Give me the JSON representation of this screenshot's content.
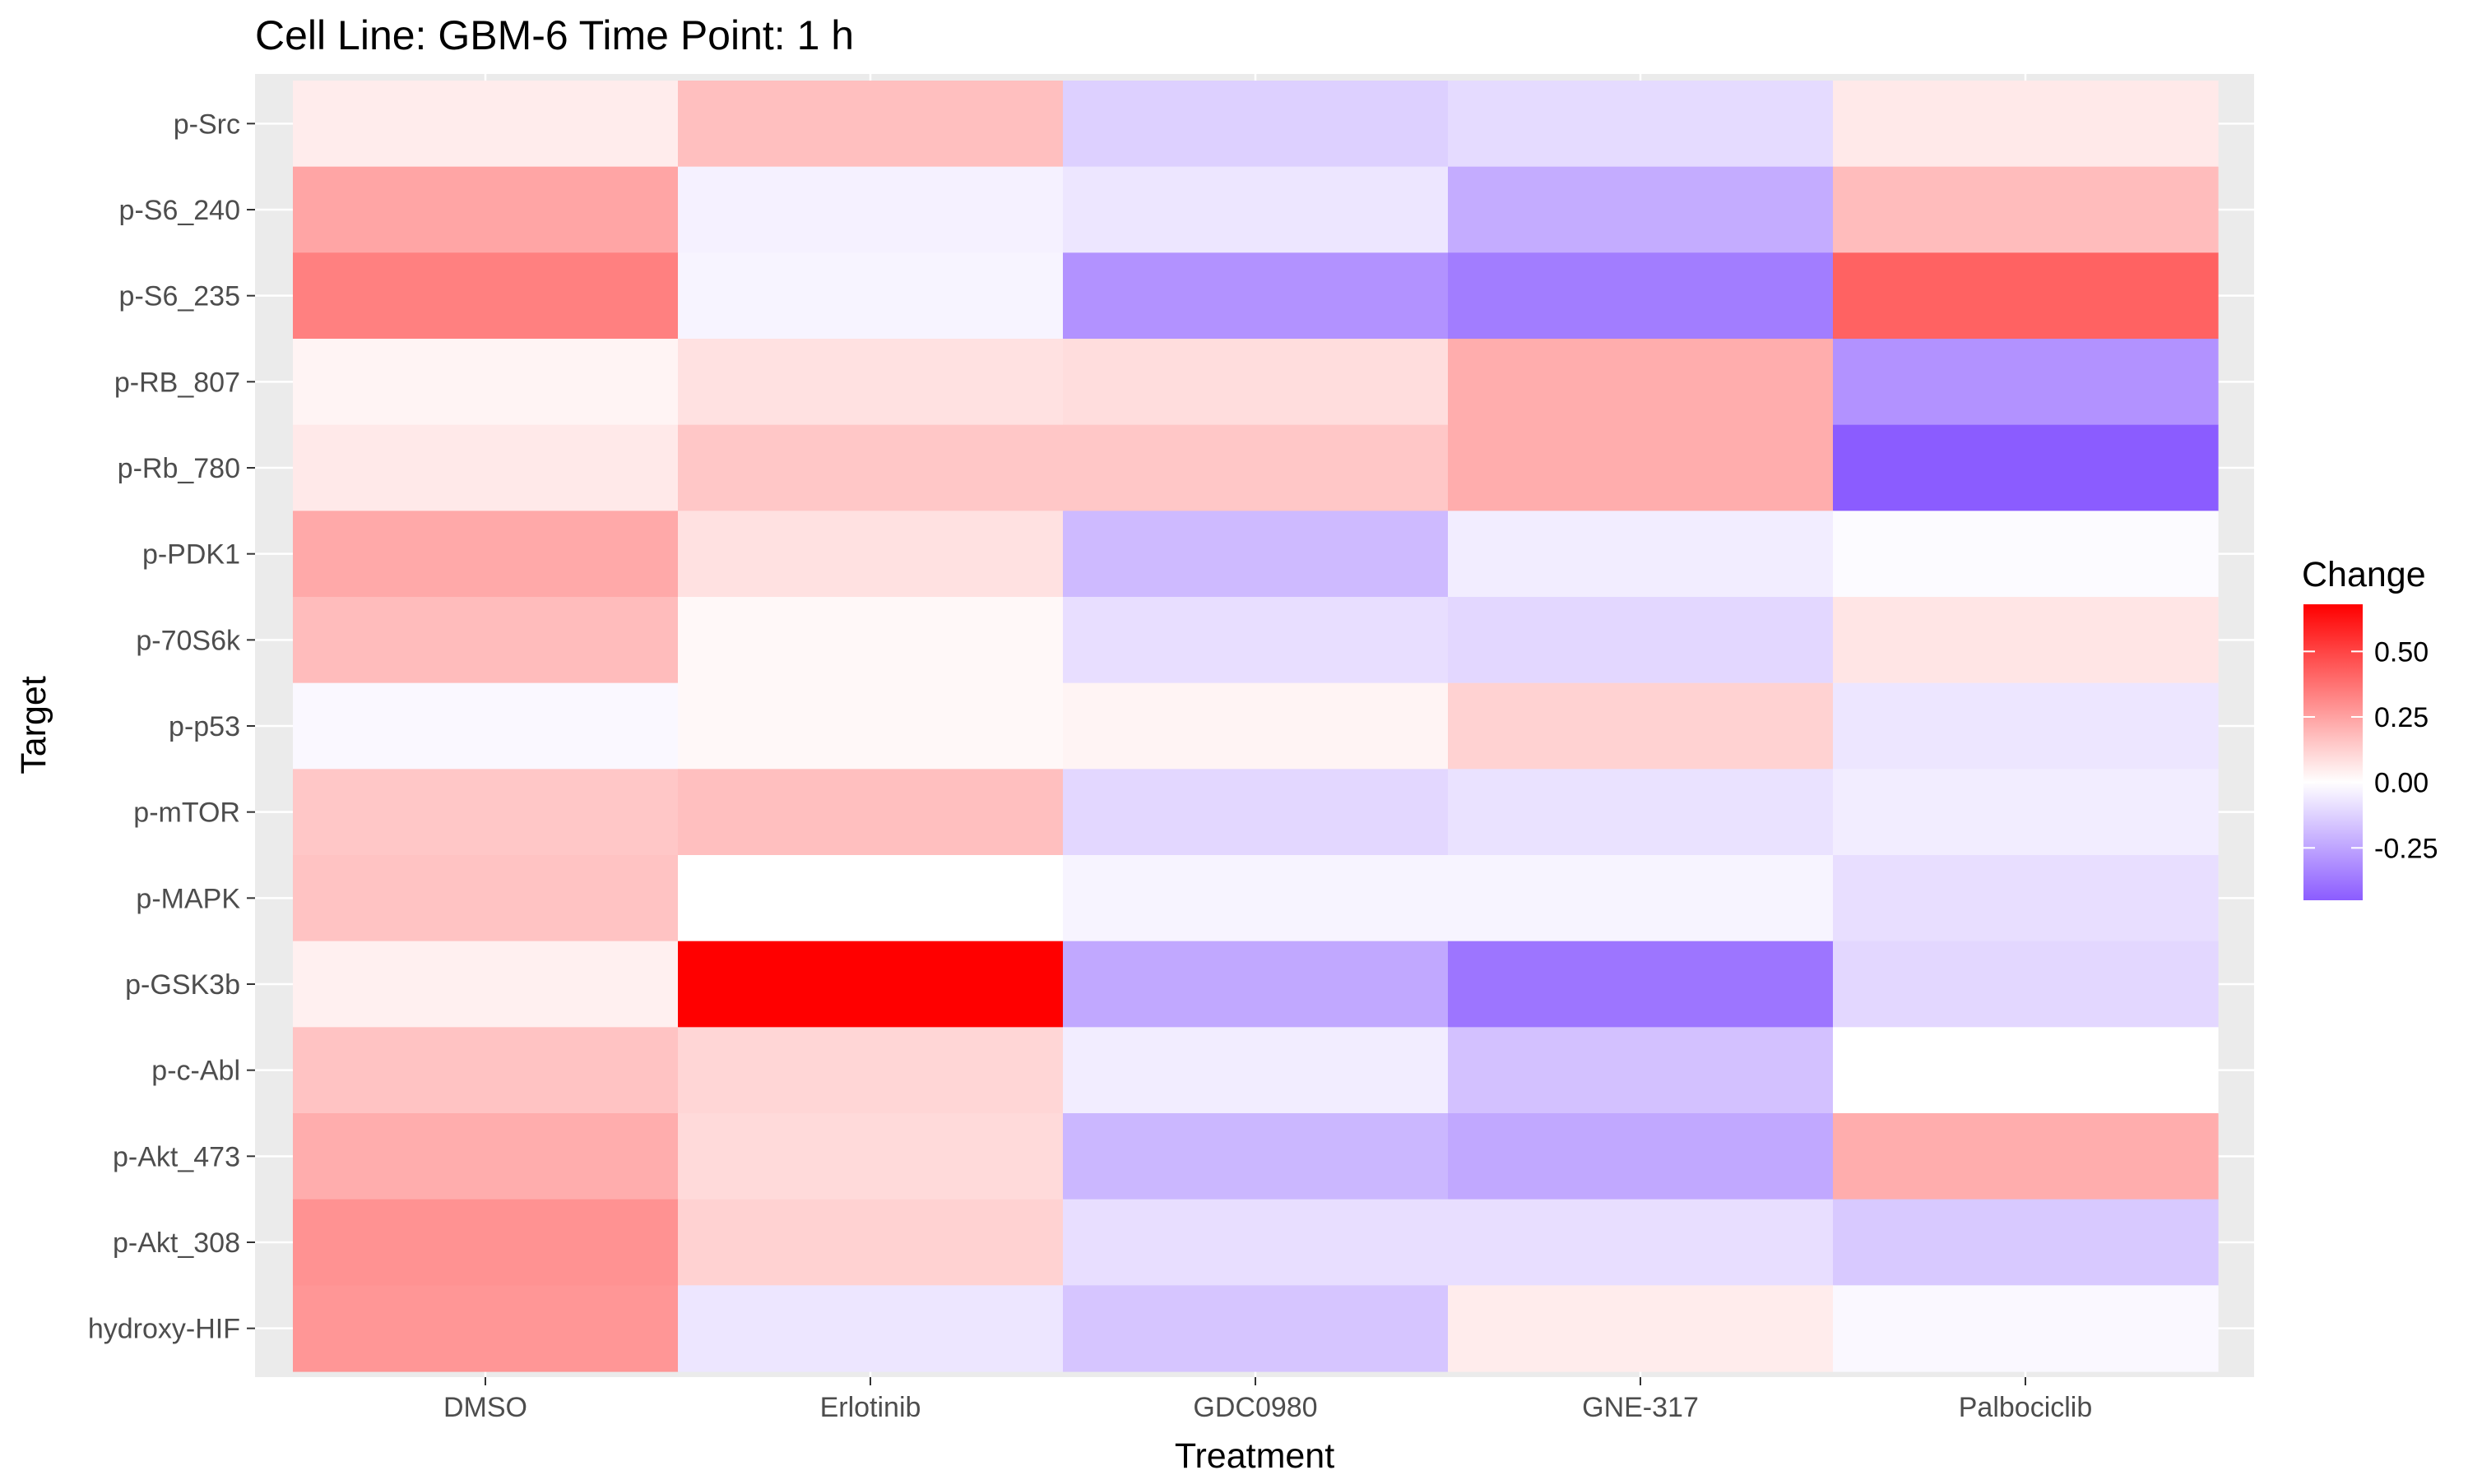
{
  "chart_data": {
    "type": "heatmap",
    "title": "Cell Line: GBM-6 Time Point: 1 h",
    "xlabel": "Treatment",
    "ylabel": "Target",
    "x_categories": [
      "DMSO",
      "Erlotinib",
      "GDC0980",
      "GNE-317",
      "Palbociclib"
    ],
    "y_categories": [
      "p-Src",
      "p-S6_240",
      "p-S6_235",
      "p-RB_807",
      "p-Rb_780",
      "p-PDK1",
      "p-70S6k",
      "p-p53",
      "p-mTOR",
      "p-MAPK",
      "p-GSK3b",
      "p-c-Abl",
      "p-Akt_473",
      "p-Akt_308",
      "hydroxy-HIF"
    ],
    "values": [
      [
        0.05,
        0.17,
        -0.13,
        -0.1,
        0.06
      ],
      [
        0.24,
        -0.04,
        -0.07,
        -0.23,
        0.18
      ],
      [
        0.34,
        -0.03,
        -0.3,
        -0.36,
        0.42
      ],
      [
        0.03,
        0.08,
        0.09,
        0.22,
        -0.3
      ],
      [
        0.06,
        0.15,
        0.15,
        0.22,
        -0.45
      ],
      [
        0.23,
        0.08,
        -0.19,
        -0.05,
        -0.01
      ],
      [
        0.18,
        0.02,
        -0.09,
        -0.11,
        0.07
      ],
      [
        -0.02,
        0.02,
        0.03,
        0.12,
        -0.07
      ],
      [
        0.15,
        0.17,
        -0.11,
        -0.08,
        -0.05
      ],
      [
        0.16,
        0.0,
        -0.03,
        -0.03,
        -0.09
      ],
      [
        0.04,
        0.68,
        -0.24,
        -0.38,
        -0.11
      ],
      [
        0.16,
        0.11,
        -0.05,
        -0.17,
        0.0
      ],
      [
        0.22,
        0.1,
        -0.2,
        -0.24,
        0.22
      ],
      [
        0.29,
        0.12,
        -0.09,
        -0.09,
        -0.15
      ],
      [
        0.28,
        -0.07,
        -0.16,
        0.05,
        -0.02
      ]
    ],
    "legend": {
      "title": "Change",
      "ticks": [
        "0.50",
        "0.25",
        "0.00",
        "-0.25"
      ],
      "tick_values": [
        0.5,
        0.25,
        0.0,
        -0.25
      ],
      "range": [
        -0.45,
        0.68
      ],
      "placement": "right"
    },
    "colors": {
      "low": "#8b5cff",
      "mid": "#ffffff",
      "high": "#ff0000",
      "panel_background": "#ebebeb",
      "grid": "#ffffff"
    }
  }
}
